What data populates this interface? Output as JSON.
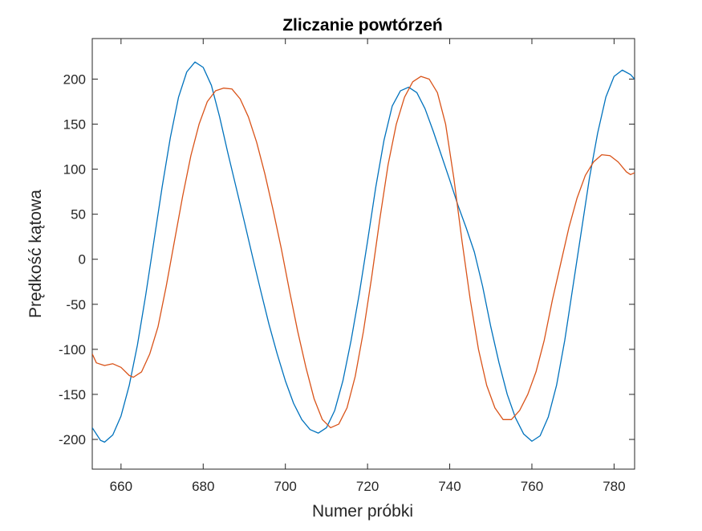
{
  "chart_data": {
    "type": "line",
    "title": "Zliczanie powtórzeń",
    "xlabel": "Numer próbki",
    "ylabel": "Prędkość kątowa",
    "xlim": [
      653,
      785
    ],
    "ylim": [
      -233,
      245
    ],
    "xticks": [
      660,
      680,
      700,
      720,
      740,
      760,
      780
    ],
    "yticks": [
      -200,
      -150,
      -100,
      -50,
      0,
      50,
      100,
      150,
      200
    ],
    "grid": false,
    "legend": "none",
    "series": [
      {
        "color": "#0072BD",
        "points": [
          [
            653,
            -187
          ],
          [
            655,
            -201
          ],
          [
            656,
            -203
          ],
          [
            658,
            -195
          ],
          [
            660,
            -174
          ],
          [
            662,
            -140
          ],
          [
            664,
            -95
          ],
          [
            666,
            -40
          ],
          [
            668,
            20
          ],
          [
            670,
            80
          ],
          [
            672,
            135
          ],
          [
            674,
            180
          ],
          [
            676,
            208
          ],
          [
            678,
            219
          ],
          [
            680,
            213
          ],
          [
            682,
            193
          ],
          [
            684,
            158
          ],
          [
            686,
            118
          ],
          [
            688,
            80
          ],
          [
            690,
            42
          ],
          [
            692,
            3
          ],
          [
            694,
            -35
          ],
          [
            696,
            -72
          ],
          [
            698,
            -105
          ],
          [
            700,
            -135
          ],
          [
            702,
            -160
          ],
          [
            704,
            -178
          ],
          [
            706,
            -189
          ],
          [
            708,
            -193
          ],
          [
            710,
            -187
          ],
          [
            712,
            -168
          ],
          [
            714,
            -135
          ],
          [
            716,
            -90
          ],
          [
            718,
            -38
          ],
          [
            720,
            20
          ],
          [
            722,
            80
          ],
          [
            724,
            132
          ],
          [
            726,
            170
          ],
          [
            728,
            187
          ],
          [
            730,
            191
          ],
          [
            732,
            185
          ],
          [
            734,
            167
          ],
          [
            736,
            142
          ],
          [
            738,
            115
          ],
          [
            740,
            88
          ],
          [
            742,
            60
          ],
          [
            744,
            35
          ],
          [
            746,
            8
          ],
          [
            748,
            -30
          ],
          [
            750,
            -75
          ],
          [
            752,
            -115
          ],
          [
            754,
            -150
          ],
          [
            756,
            -176
          ],
          [
            758,
            -194
          ],
          [
            760,
            -202
          ],
          [
            762,
            -196
          ],
          [
            764,
            -175
          ],
          [
            766,
            -140
          ],
          [
            768,
            -90
          ],
          [
            770,
            -30
          ],
          [
            772,
            30
          ],
          [
            774,
            90
          ],
          [
            776,
            140
          ],
          [
            778,
            180
          ],
          [
            780,
            203
          ],
          [
            782,
            210
          ],
          [
            784,
            205
          ],
          [
            785,
            200
          ]
        ]
      },
      {
        "color": "#D95319",
        "points": [
          [
            653,
            -105
          ],
          [
            654,
            -115
          ],
          [
            656,
            -118
          ],
          [
            658,
            -116
          ],
          [
            660,
            -120
          ],
          [
            662,
            -129
          ],
          [
            663,
            -131
          ],
          [
            665,
            -125
          ],
          [
            667,
            -105
          ],
          [
            669,
            -75
          ],
          [
            671,
            -30
          ],
          [
            673,
            20
          ],
          [
            675,
            70
          ],
          [
            677,
            115
          ],
          [
            679,
            150
          ],
          [
            681,
            175
          ],
          [
            683,
            187
          ],
          [
            685,
            190
          ],
          [
            687,
            189
          ],
          [
            689,
            178
          ],
          [
            691,
            158
          ],
          [
            693,
            130
          ],
          [
            695,
            95
          ],
          [
            697,
            55
          ],
          [
            699,
            12
          ],
          [
            701,
            -35
          ],
          [
            703,
            -80
          ],
          [
            705,
            -120
          ],
          [
            707,
            -155
          ],
          [
            709,
            -178
          ],
          [
            711,
            -187
          ],
          [
            713,
            -183
          ],
          [
            715,
            -165
          ],
          [
            717,
            -130
          ],
          [
            719,
            -80
          ],
          [
            721,
            -20
          ],
          [
            723,
            45
          ],
          [
            725,
            105
          ],
          [
            727,
            150
          ],
          [
            729,
            180
          ],
          [
            731,
            197
          ],
          [
            733,
            203
          ],
          [
            735,
            200
          ],
          [
            737,
            185
          ],
          [
            739,
            150
          ],
          [
            741,
            90
          ],
          [
            743,
            20
          ],
          [
            745,
            -45
          ],
          [
            747,
            -100
          ],
          [
            749,
            -140
          ],
          [
            751,
            -165
          ],
          [
            753,
            -178
          ],
          [
            755,
            -178
          ],
          [
            757,
            -168
          ],
          [
            759,
            -150
          ],
          [
            761,
            -125
          ],
          [
            763,
            -90
          ],
          [
            765,
            -45
          ],
          [
            767,
            -5
          ],
          [
            769,
            35
          ],
          [
            771,
            68
          ],
          [
            773,
            93
          ],
          [
            775,
            108
          ],
          [
            777,
            116
          ],
          [
            779,
            115
          ],
          [
            781,
            108
          ],
          [
            783,
            97
          ],
          [
            784,
            94
          ],
          [
            785,
            96
          ]
        ]
      }
    ]
  }
}
